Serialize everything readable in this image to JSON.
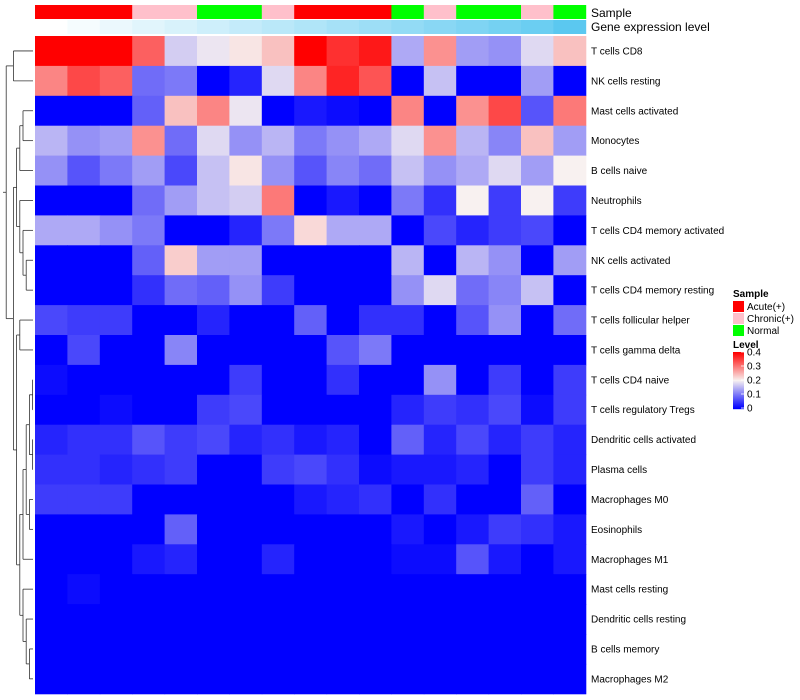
{
  "chart_data": {
    "type": "heatmap",
    "title": "",
    "xlabel": "",
    "ylabel": "",
    "rows": [
      "T cells CD8",
      "NK cells resting",
      "Mast cells activated",
      "Monocytes",
      "B cells naive",
      "Neutrophils",
      "T cells CD4 memory activated",
      "NK cells activated",
      "T cells CD4 memory resting",
      "T cells follicular helper",
      "T cells gamma delta",
      "T cells CD4 naive",
      "T cells regulatory  Tregs",
      "Dendritic cells activated",
      "Plasma cells",
      "Macrophages M0",
      "Eosinophils",
      "Macrophages M1",
      "Mast cells resting",
      "Dendritic cells resting",
      "B cells memory",
      "Macrophages M2"
    ],
    "annotation_labels": [
      "Sample",
      "Gene expression level"
    ],
    "samples": [
      "Acute(+)",
      "Acute(+)",
      "Acute(+)",
      "Chronic(+)",
      "Chronic(+)",
      "Normal",
      "Normal",
      "Chronic(+)",
      "Acute(+)",
      "Acute(+)",
      "Acute(+)",
      "Normal",
      "Chronic(+)",
      "Normal",
      "Normal",
      "Chronic(+)",
      "Normal"
    ],
    "gene_expression_level": [
      0.0,
      0.06,
      0.12,
      0.18,
      0.24,
      0.3,
      0.36,
      0.42,
      0.48,
      0.54,
      0.6,
      0.66,
      0.72,
      0.78,
      0.84,
      0.9,
      1.0
    ],
    "values": [
      [
        0.4,
        0.4,
        0.4,
        0.32,
        0.17,
        0.19,
        0.21,
        0.24,
        0.4,
        0.36,
        0.38,
        0.14,
        0.28,
        0.13,
        0.12,
        0.18,
        0.24
      ],
      [
        0.29,
        0.34,
        0.32,
        0.09,
        0.1,
        0.0,
        0.03,
        0.18,
        0.29,
        0.37,
        0.33,
        0.0,
        0.16,
        0.0,
        0.0,
        0.13,
        0.0
      ],
      [
        0.0,
        0.0,
        0.0,
        0.08,
        0.24,
        0.29,
        0.19,
        0.0,
        0.02,
        0.01,
        0.0,
        0.29,
        0.0,
        0.28,
        0.34,
        0.07,
        0.3
      ],
      [
        0.15,
        0.12,
        0.13,
        0.28,
        0.09,
        0.18,
        0.12,
        0.15,
        0.1,
        0.12,
        0.14,
        0.18,
        0.28,
        0.15,
        0.11,
        0.24,
        0.13
      ],
      [
        0.12,
        0.07,
        0.1,
        0.13,
        0.06,
        0.16,
        0.21,
        0.12,
        0.07,
        0.11,
        0.09,
        0.16,
        0.12,
        0.14,
        0.18,
        0.13,
        0.2
      ],
      [
        0.0,
        0.0,
        0.0,
        0.09,
        0.13,
        0.16,
        0.17,
        0.3,
        0.0,
        0.02,
        0.0,
        0.1,
        0.04,
        0.2,
        0.05,
        0.2,
        0.05
      ],
      [
        0.14,
        0.14,
        0.12,
        0.1,
        0.0,
        0.0,
        0.03,
        0.1,
        0.22,
        0.14,
        0.14,
        0.0,
        0.06,
        0.03,
        0.05,
        0.06,
        0.0
      ],
      [
        0.0,
        0.0,
        0.0,
        0.08,
        0.23,
        0.13,
        0.13,
        0.0,
        0.0,
        0.0,
        0.0,
        0.15,
        0.0,
        0.15,
        0.12,
        0.0,
        0.13
      ],
      [
        0.0,
        0.0,
        0.0,
        0.04,
        0.09,
        0.08,
        0.12,
        0.05,
        0.0,
        0.0,
        0.0,
        0.12,
        0.18,
        0.09,
        0.11,
        0.16,
        0.0
      ],
      [
        0.06,
        0.05,
        0.05,
        0.0,
        0.0,
        0.03,
        0.0,
        0.0,
        0.08,
        0.0,
        0.04,
        0.04,
        0.0,
        0.07,
        0.12,
        0.0,
        0.09
      ],
      [
        0.0,
        0.06,
        0.0,
        0.0,
        0.11,
        0.0,
        0.0,
        0.0,
        0.0,
        0.07,
        0.1,
        0.0,
        0.0,
        0.0,
        0.0,
        0.0,
        0.0
      ],
      [
        0.01,
        0.0,
        0.0,
        0.0,
        0.0,
        0.0,
        0.05,
        0.0,
        0.0,
        0.04,
        0.0,
        0.0,
        0.12,
        0.0,
        0.05,
        0.0,
        0.05
      ],
      [
        0.0,
        0.0,
        0.01,
        0.0,
        0.0,
        0.05,
        0.06,
        0.0,
        0.0,
        0.0,
        0.0,
        0.03,
        0.05,
        0.04,
        0.06,
        0.01,
        0.05
      ],
      [
        0.03,
        0.04,
        0.04,
        0.07,
        0.05,
        0.06,
        0.03,
        0.04,
        0.02,
        0.03,
        0.0,
        0.08,
        0.03,
        0.06,
        0.03,
        0.05,
        0.03
      ],
      [
        0.04,
        0.04,
        0.03,
        0.04,
        0.05,
        0.0,
        0.0,
        0.05,
        0.06,
        0.04,
        0.01,
        0.02,
        0.02,
        0.03,
        0.0,
        0.05,
        0.03
      ],
      [
        0.05,
        0.05,
        0.05,
        0.0,
        0.0,
        0.0,
        0.0,
        0.0,
        0.02,
        0.03,
        0.04,
        0.0,
        0.04,
        0.0,
        0.0,
        0.08,
        0.0
      ],
      [
        0.0,
        0.0,
        0.0,
        0.0,
        0.08,
        0.0,
        0.0,
        0.0,
        0.0,
        0.0,
        0.0,
        0.02,
        0.0,
        0.02,
        0.05,
        0.04,
        0.02
      ],
      [
        0.0,
        0.0,
        0.0,
        0.02,
        0.03,
        0.0,
        0.0,
        0.03,
        0.0,
        0.0,
        0.0,
        0.01,
        0.01,
        0.07,
        0.02,
        0.0,
        0.02
      ],
      [
        0.0,
        0.01,
        0.0,
        0.0,
        0.0,
        0.0,
        0.0,
        0.0,
        0.0,
        0.0,
        0.0,
        0.0,
        0.0,
        0.0,
        0.0,
        0.0,
        0.0
      ],
      [
        0.0,
        0.0,
        0.0,
        0.0,
        0.0,
        0.0,
        0.0,
        0.0,
        0.0,
        0.0,
        0.0,
        0.0,
        0.0,
        0.0,
        0.0,
        0.0,
        0.0
      ],
      [
        0.0,
        0.0,
        0.0,
        0.0,
        0.0,
        0.0,
        0.0,
        0.0,
        0.0,
        0.0,
        0.0,
        0.0,
        0.0,
        0.0,
        0.0,
        0.0,
        0.0
      ],
      [
        0.0,
        0.0,
        0.0,
        0.0,
        0.0,
        0.0,
        0.0,
        0.0,
        0.0,
        0.0,
        0.0,
        0.0,
        0.0,
        0.0,
        0.0,
        0.0,
        0.0
      ]
    ],
    "color_scale": {
      "min": 0,
      "max": 0.4,
      "low": "#0000FF",
      "mid": "#F8F1F0",
      "high": "#FF0000",
      "mid_value": 0.2
    },
    "sample_legend": {
      "title": "Sample",
      "entries": [
        {
          "label": "Acute(+)",
          "color": "#FF0000"
        },
        {
          "label": "Chronic(+)",
          "color": "#FFC0CB"
        },
        {
          "label": "Normal",
          "color": "#00FF00"
        }
      ]
    },
    "level_legend": {
      "title": "Level",
      "ticks": [
        "0.4",
        "0.3",
        "0.2",
        "0.1",
        "0"
      ]
    },
    "gene_expression_colors": {
      "low": "#FFFFFF",
      "high": "#5BC8F0"
    }
  }
}
